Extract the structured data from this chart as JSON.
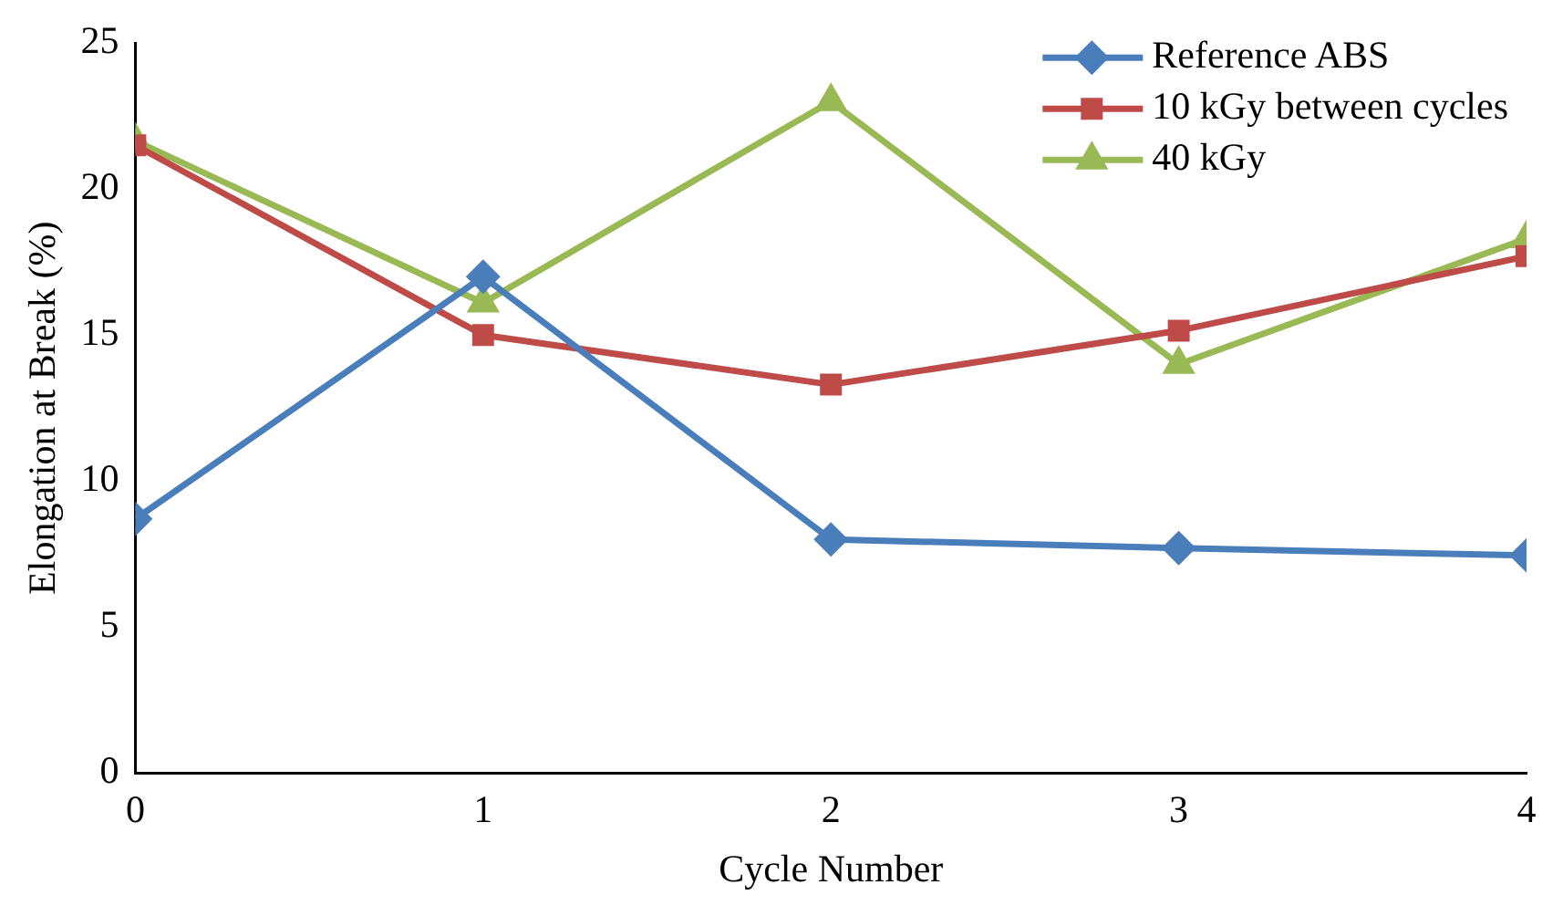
{
  "chart_data": {
    "type": "line",
    "xlabel": "Cycle Number",
    "ylabel": "Elongation at Break (%)",
    "x": [
      0,
      1,
      2,
      3,
      4
    ],
    "xlim": [
      0,
      4
    ],
    "xticks": [
      0,
      1,
      2,
      3,
      4
    ],
    "ylim": [
      0,
      25
    ],
    "yticks": [
      0,
      5,
      10,
      15,
      20,
      25
    ],
    "grid": false,
    "legend": "top right",
    "line_style": "solid",
    "series": [
      {
        "name": "Reference ABS",
        "color": "#4a7ebb",
        "marker": "diamond",
        "values": [
          8.7,
          17.0,
          8.0,
          7.7,
          7.45
        ]
      },
      {
        "name": "10 kGy between cycles",
        "color": "#be4b48",
        "marker": "square",
        "values": [
          21.5,
          15.0,
          13.3,
          15.15,
          17.7
        ]
      },
      {
        "name": "40 kGy",
        "color": "#98b954",
        "marker": "triangle",
        "values": [
          21.65,
          16.1,
          23.0,
          14.0,
          18.3
        ]
      }
    ]
  }
}
